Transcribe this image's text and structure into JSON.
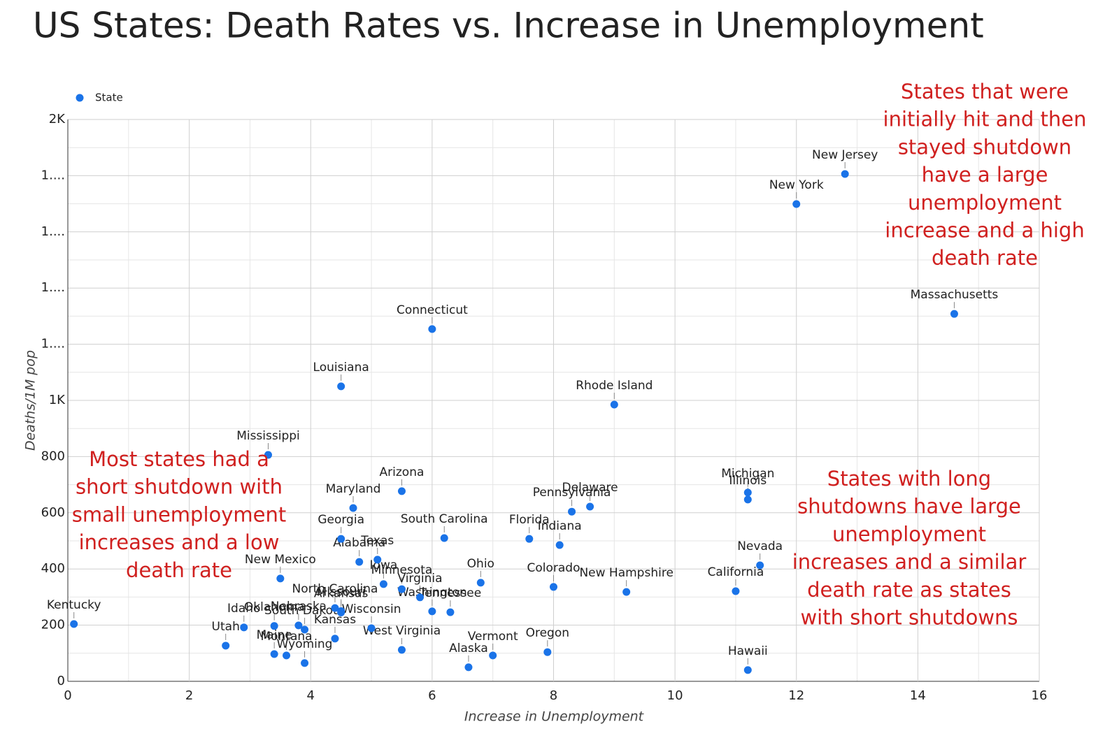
{
  "chart_data": {
    "type": "scatter",
    "title": "US States: Death Rates vs. Increase in Unemployment",
    "x_label": "Increase in Unemployment",
    "y_label": "Deaths/1M pop",
    "xlim": [
      0,
      16
    ],
    "xticks": [
      0,
      2,
      4,
      6,
      8,
      10,
      12,
      14,
      16
    ],
    "ylim": [
      0,
      2000
    ],
    "yticks": [
      0,
      200,
      400,
      600,
      800,
      {
        "value": 1000,
        "label": "1K"
      },
      {
        "value": 1200,
        "label": "1...."
      },
      {
        "value": 1400,
        "label": "1...."
      },
      {
        "value": 1600,
        "label": "1...."
      },
      {
        "value": 1800,
        "label": "1...."
      },
      {
        "value": 2000,
        "label": "2K"
      }
    ],
    "grid": true,
    "minor_grid": true,
    "legend": "top-left",
    "series": [
      {
        "name": "State",
        "color": "#1a73e8",
        "labels": [
          "Kentucky",
          "Utah",
          "Idaho",
          "Mississippi",
          "Oklahoma",
          "Maine",
          "New Mexico",
          "Montana",
          "Nebraska",
          "South Dakota",
          "Wyoming",
          "Kansas",
          "North Carolina",
          "Missouri",
          "Arkansas",
          "Louisiana",
          "Georgia",
          "Maryland",
          "Alabama",
          "Wisconsin",
          "Texas",
          "Iowa",
          "Minnesota",
          "Virginia",
          "Washington",
          "Tennessee",
          "West Virginia",
          "Arizona",
          "Connecticut",
          "South Carolina",
          "Alaska",
          "Ohio",
          "Vermont",
          "Florida",
          "Oregon",
          "Colorado",
          "Indiana",
          "Pennsylvania",
          "Delaware",
          "Rhode Island",
          "New Hampshire",
          "California",
          "Michigan",
          "Illinois",
          "Hawaii",
          "Nevada",
          "New York",
          "New Jersey",
          "Massachusetts"
        ],
        "x": [
          0.1,
          2.6,
          2.9,
          3.3,
          3.4,
          3.4,
          3.5,
          3.6,
          3.8,
          3.9,
          3.9,
          4.4,
          4.4,
          4.5,
          4.5,
          4.5,
          4.5,
          4.7,
          4.8,
          5.0,
          5.1,
          5.2,
          5.5,
          5.8,
          6.0,
          6.3,
          5.5,
          5.5,
          6.0,
          6.2,
          6.6,
          6.8,
          7.0,
          7.6,
          7.9,
          8.0,
          8.1,
          8.3,
          8.6,
          9.0,
          9.2,
          11.0,
          11.2,
          11.2,
          11.2,
          11.4,
          12.0,
          12.8,
          14.6
        ],
        "values": [
          204,
          127,
          192,
          806,
          197,
          97,
          366,
          92,
          199,
          184,
          65,
          152,
          261,
          250,
          245,
          1050,
          507,
          617,
          425,
          189,
          433,
          346,
          328,
          299,
          249,
          246,
          112,
          677,
          1254,
          510,
          50,
          351,
          92,
          507,
          104,
          336,
          485,
          604,
          622,
          985,
          318,
          321,
          672,
          647,
          40,
          413,
          1699,
          1806,
          1308
        ]
      }
    ],
    "annotations": [
      [
        "Most states had a",
        "short shutdown with",
        "small unemployment",
        "increases and a low",
        "death rate"
      ],
      [
        "States that were",
        "initially hit and then",
        "stayed shutdown",
        "have a large",
        "unemployment",
        "increase and a high",
        "death rate"
      ],
      [
        "States with long",
        "shutdowns have large",
        "unemployment",
        "increases and a similar",
        "death rate as states",
        "with short shutdowns"
      ]
    ]
  }
}
